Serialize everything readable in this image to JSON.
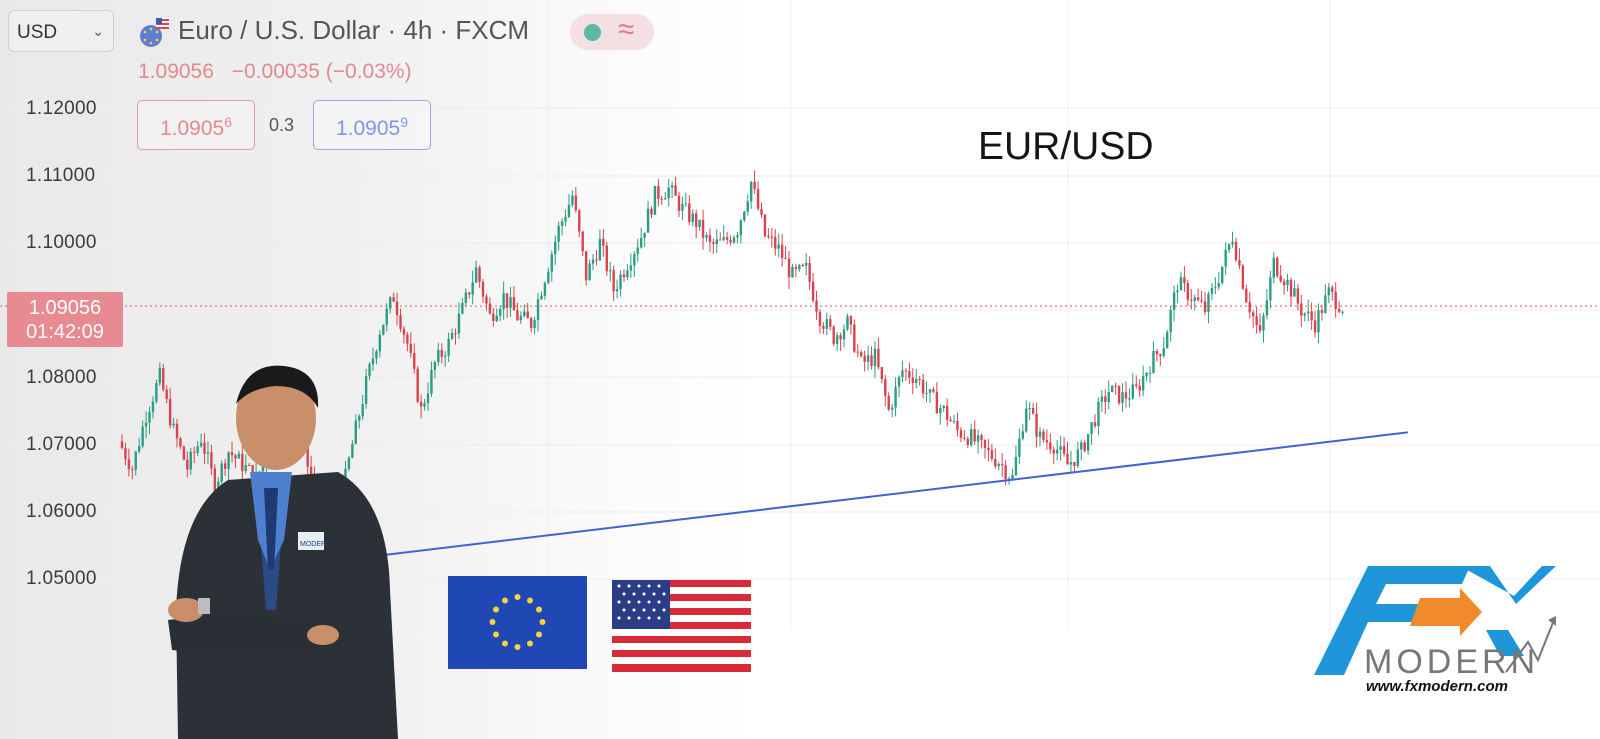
{
  "toolbar": {
    "currency_select_value": "USD",
    "symbol_icon": "eur-usd-pair-icon",
    "symbol_title": "Euro / U.S. Dollar · 4h · FXCM",
    "status_dot_icon": "market-open-dot-icon",
    "status_wave_icon": "approx-wave-icon"
  },
  "quote": {
    "last_price": "1.09056",
    "change": "−0.00035 (−0.03%)",
    "bid_main": "1.0905",
    "bid_pip": "6",
    "spread": "0.3",
    "ask_main": "1.0905",
    "ask_pip": "9"
  },
  "price_label": {
    "price": "1.09056",
    "countdown": "01:42:09"
  },
  "colors": {
    "up": "#2a9d84",
    "down": "#d9434f",
    "trendline": "#3f63d6",
    "price_line": "#e07a7a",
    "price_label_bg": "#e88a92"
  },
  "chart_data": {
    "type": "candlestick",
    "title": "EUR/USD",
    "y_ticks": [
      "1.12000",
      "1.11000",
      "1.10000",
      "1.08000",
      "1.07000",
      "1.06000",
      "1.05000"
    ],
    "ylim": [
      1.0465,
      1.1298
    ],
    "current_price": 1.09056,
    "grid": true,
    "x": [],
    "close_path": [
      1.0705,
      1.0665,
      1.0745,
      1.08,
      1.072,
      1.0665,
      1.071,
      1.064,
      1.069,
      1.067,
      1.065,
      1.069,
      1.0735,
      1.076,
      1.065,
      1.0545,
      1.06,
      1.07,
      1.079,
      1.087,
      1.092,
      1.085,
      1.075,
      1.082,
      1.085,
      1.09,
      1.096,
      1.089,
      1.092,
      1.089,
      1.088,
      1.095,
      1.102,
      1.107,
      1.095,
      1.1,
      1.093,
      1.097,
      1.101,
      1.107,
      1.108,
      1.105,
      1.103,
      1.0995,
      1.1,
      1.102,
      1.109,
      1.101,
      1.099,
      1.095,
      1.096,
      1.089,
      1.086,
      1.088,
      1.082,
      1.083,
      1.075,
      1.081,
      1.08,
      1.077,
      1.075,
      1.072,
      1.071,
      1.069,
      1.0675,
      1.065,
      1.076,
      1.071,
      1.07,
      1.067,
      1.069,
      1.074,
      1.078,
      1.077,
      1.078,
      1.082,
      1.085,
      1.094,
      1.092,
      1.09,
      1.095,
      1.101,
      1.092,
      1.086,
      1.097,
      1.094,
      1.09,
      1.088,
      1.0925,
      1.0905
    ],
    "trendline": {
      "from": 1.0535,
      "to": 1.0718
    },
    "flag_labels": [
      "EU",
      "USA"
    ]
  },
  "presenter": {
    "name_icon": "presenter-photo",
    "badge_text": "MODERN"
  },
  "brand": {
    "logo_icon": "fx-modern-logo-icon",
    "logo_letters": "FX",
    "logo_word": "MODERN",
    "url": "www.fxmodern.com"
  }
}
